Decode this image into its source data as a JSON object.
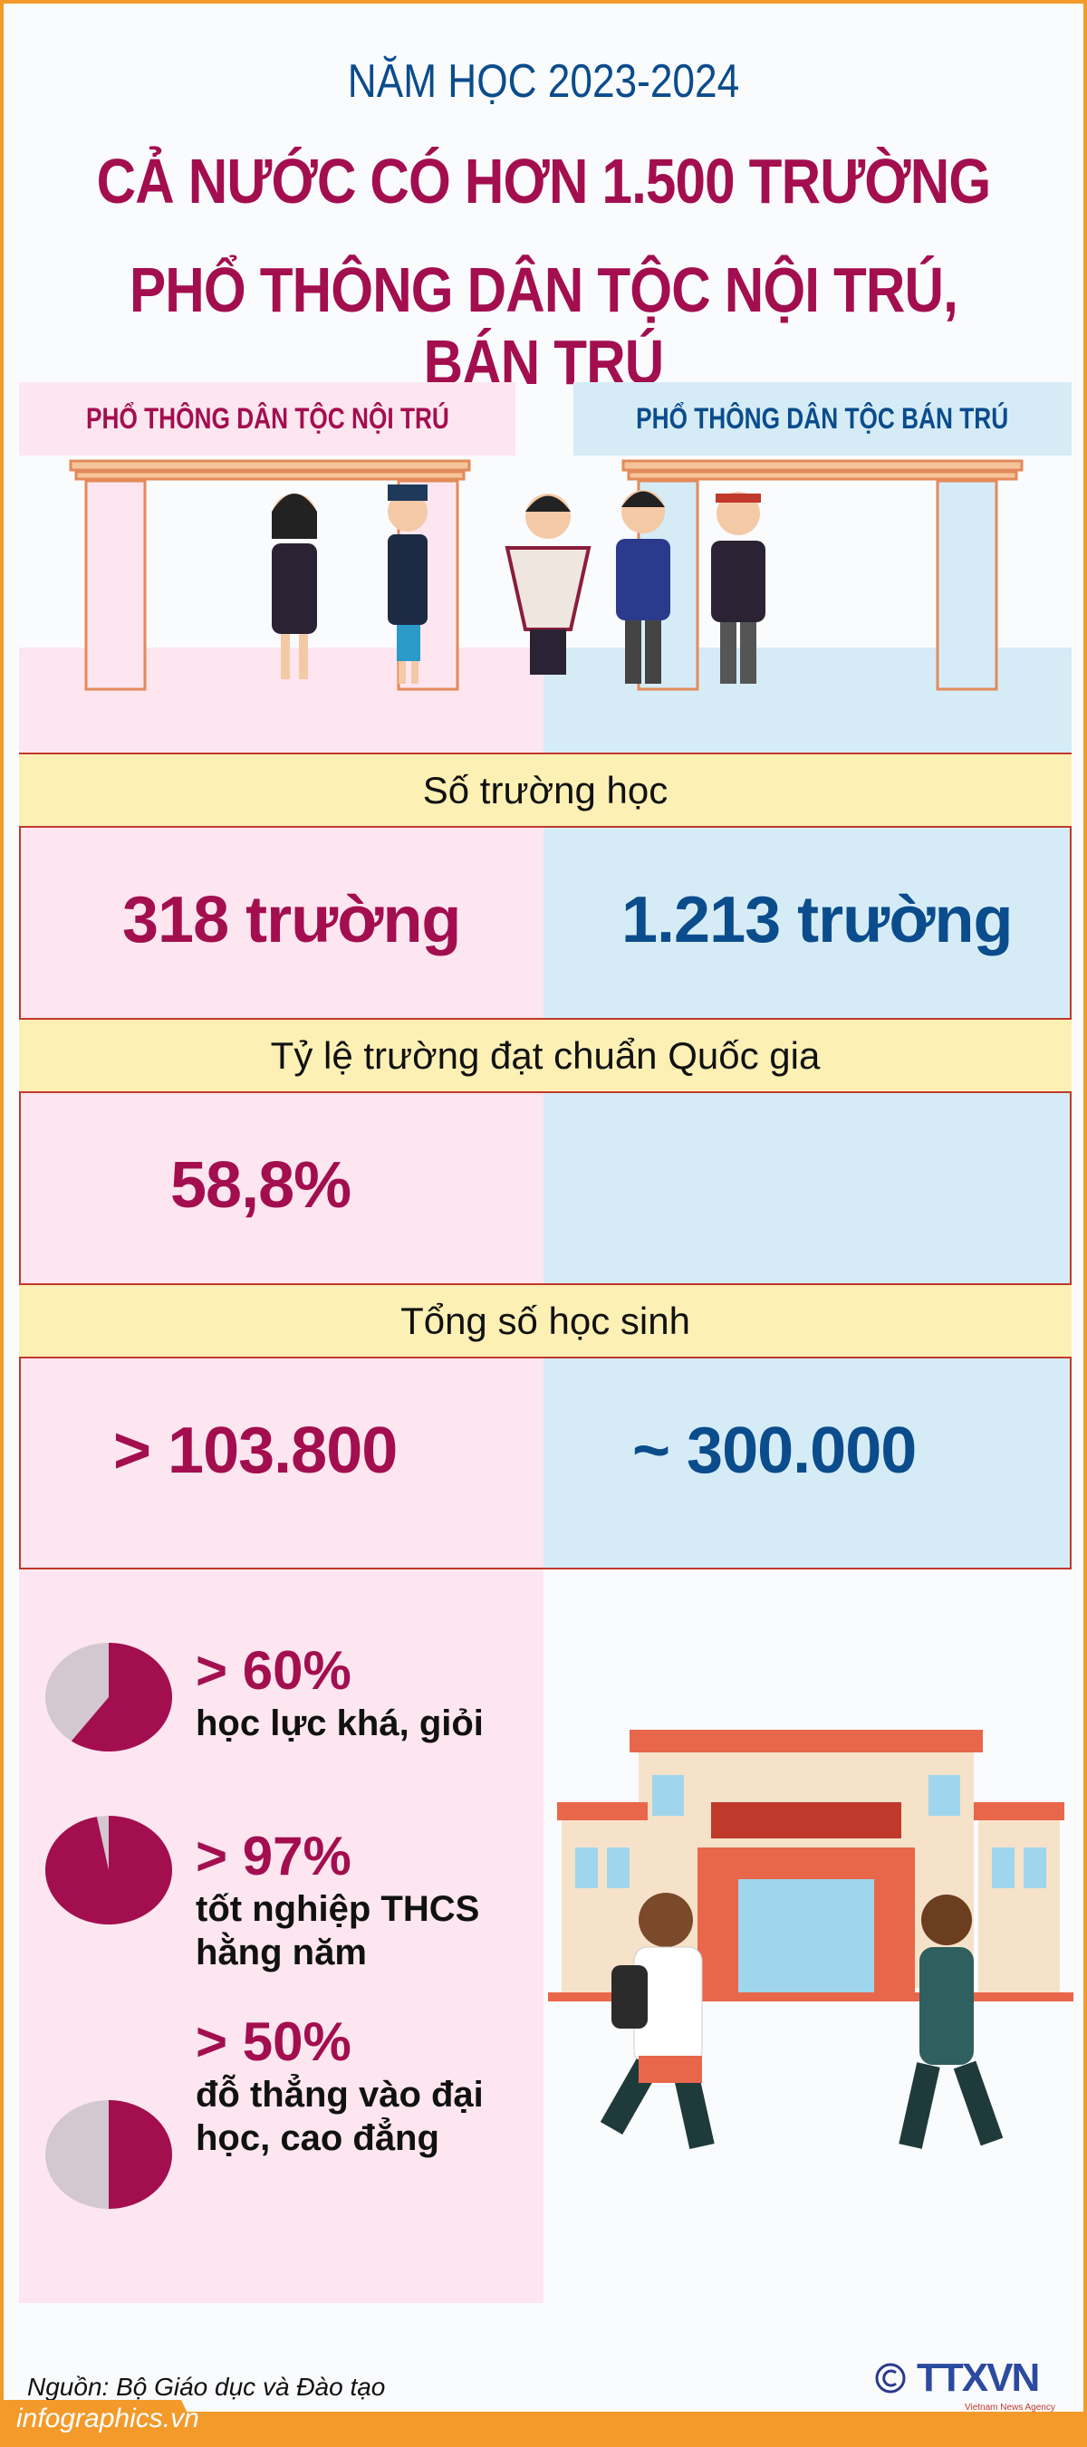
{
  "header": {
    "year": "NĂM HỌC 2023-2024",
    "title_line1": "CẢ NƯỚC CÓ HƠN 1.500 TRƯỜNG",
    "title_line2": "PHỔ THÔNG DÂN TỘC NỘI TRÚ, BÁN TRÚ"
  },
  "columns": {
    "left": "PHỔ THÔNG DÂN TỘC NỘI TRÚ",
    "right": "PHỔ THÔNG DÂN TỘC BÁN TRÚ"
  },
  "table": {
    "sections": [
      {
        "label": "Số trường học",
        "left": "318 trường",
        "right": "1.213 trường"
      },
      {
        "label": "Tỷ lệ trường đạt chuẩn Quốc gia",
        "left": "58,8%",
        "right": ""
      },
      {
        "label": "Tổng số học sinh",
        "left": "> 103.800",
        "right": "~ 300.000"
      }
    ]
  },
  "stats": [
    {
      "value": "> 60%",
      "fraction": 0.6,
      "desc": "học lực khá, giỏi"
    },
    {
      "value": "> 97%",
      "fraction": 0.97,
      "desc": "tốt nghiệp THCS hằng năm"
    },
    {
      "value": "> 50%",
      "fraction": 0.5,
      "desc": "đỗ thẳng vào đại học, cao đẳng"
    }
  ],
  "colors": {
    "accent": "#a30e4f",
    "blue": "#0b4c8c",
    "pink_bg": "#fde6ef",
    "blue_bg": "#d5ecf7",
    "header_bg": "#fdf0b5",
    "orange": "#f39a2b",
    "pie_rest": "#d4c8d0"
  },
  "footer": {
    "source": "Nguồn: Bộ Giáo dục và Đào tạo",
    "site": "infographics.vn",
    "logo": "TTXVN",
    "logo_sub": "Vietnam News Agency"
  }
}
